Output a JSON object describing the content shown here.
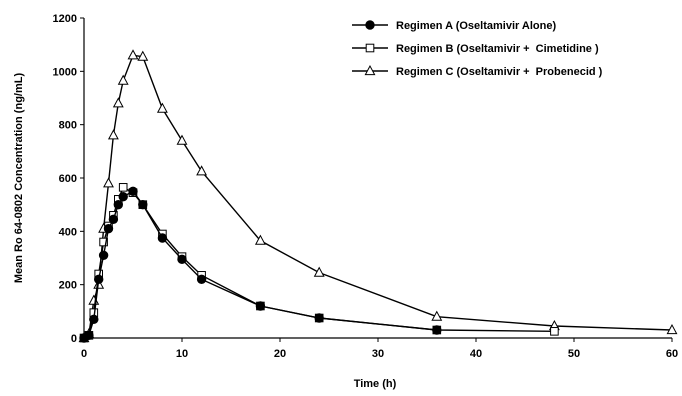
{
  "chart_data": {
    "type": "line",
    "title": "",
    "xlabel": "Time (h)",
    "ylabel": "Mean Ro 64-0802 Concentration (ng/mL)",
    "xlim": [
      0,
      60
    ],
    "ylim": [
      0,
      1200
    ],
    "xticks": [
      0,
      10,
      20,
      30,
      40,
      50,
      60
    ],
    "yticks": [
      0,
      200,
      400,
      600,
      800,
      1000,
      1200
    ],
    "grid": false,
    "legend_position": "top-right",
    "series": [
      {
        "name": "Regimen A (Oseltamivir Alone)",
        "marker": "filled-circle",
        "x": [
          0,
          0.5,
          1,
          1.5,
          2,
          2.5,
          3,
          3.5,
          4,
          5,
          6,
          8,
          10,
          12,
          18,
          24,
          36
        ],
        "y": [
          0,
          10,
          70,
          220,
          310,
          410,
          445,
          500,
          530,
          550,
          500,
          375,
          295,
          220,
          120,
          75,
          30
        ]
      },
      {
        "name": "Regimen B (Oseltamivir +  Cimetidine )",
        "marker": "open-square",
        "x": [
          0,
          0.5,
          1,
          1.5,
          2,
          2.5,
          3,
          3.5,
          4,
          5,
          6,
          8,
          10,
          12,
          18,
          24,
          36,
          48
        ],
        "y": [
          0,
          10,
          95,
          240,
          360,
          420,
          460,
          520,
          565,
          545,
          500,
          390,
          305,
          235,
          120,
          75,
          30,
          25
        ]
      },
      {
        "name": "Regimen C (Oseltamivir +  Probenecid )",
        "marker": "open-triangle",
        "x": [
          0,
          0.5,
          1,
          1.5,
          2,
          2.5,
          3,
          3.5,
          4,
          5,
          6,
          8,
          10,
          12,
          18,
          24,
          36,
          48,
          60
        ],
        "y": [
          0,
          15,
          140,
          200,
          410,
          580,
          760,
          880,
          965,
          1060,
          1055,
          860,
          740,
          625,
          365,
          245,
          80,
          45,
          30
        ]
      }
    ]
  }
}
